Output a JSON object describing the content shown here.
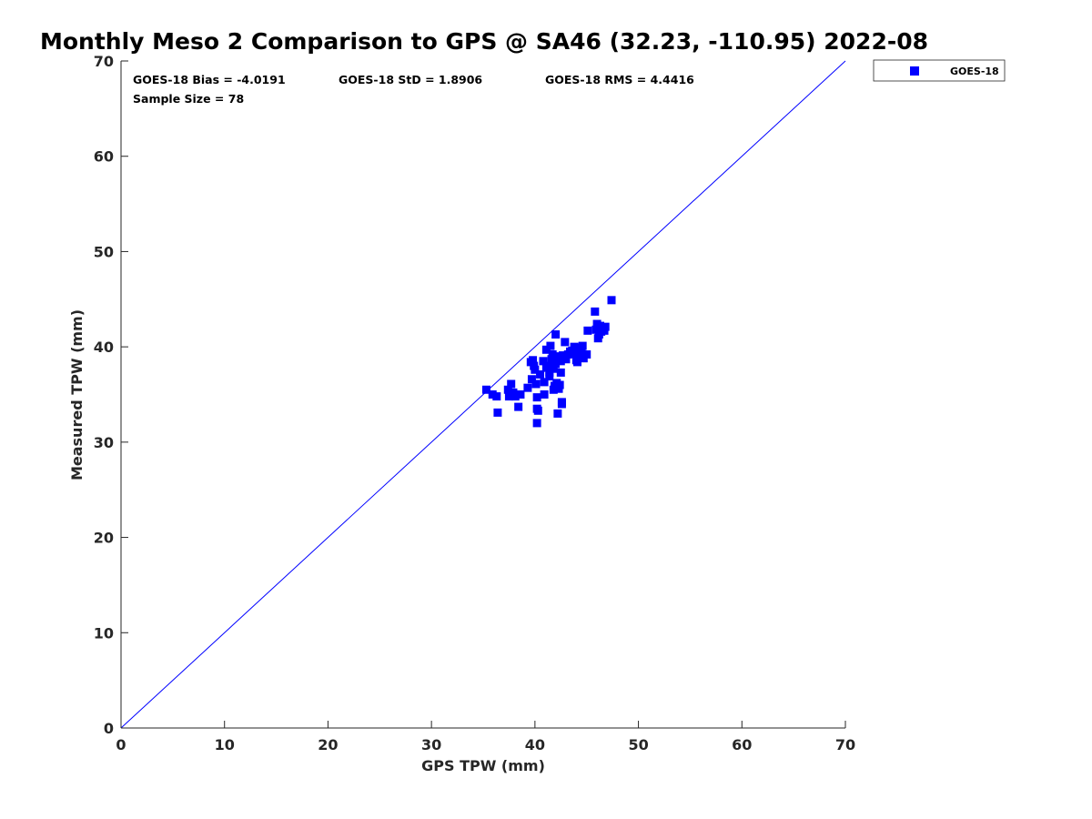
{
  "chart_data": {
    "type": "scatter",
    "title": "Monthly Meso 2 Comparison to GPS @ SA46 (32.23, -110.95) 2022-08",
    "xlabel": "GPS TPW (mm)",
    "ylabel": "Measured TPW (mm)",
    "xlim": [
      0,
      70
    ],
    "ylim": [
      0,
      70
    ],
    "xticks": [
      0,
      10,
      20,
      30,
      40,
      50,
      60,
      70
    ],
    "yticks": [
      0,
      10,
      20,
      30,
      40,
      50,
      60,
      70
    ],
    "grid": false,
    "legend_position": "outside top-right",
    "stats": {
      "bias": "GOES-18 Bias = -4.0191",
      "std": "GOES-18 StD = 1.8906",
      "rms": "GOES-18 RMS = 4.4416",
      "sample_size": "Sample Size = 78"
    },
    "reference_line": {
      "x": [
        0,
        70
      ],
      "y": [
        0,
        70
      ],
      "color": "#0000ff"
    },
    "series": [
      {
        "name": "GOES-18",
        "color": "#0000ff",
        "marker": "square",
        "points": [
          [
            35.3,
            35.5
          ],
          [
            35.9,
            35.0
          ],
          [
            36.3,
            34.8
          ],
          [
            36.4,
            33.1
          ],
          [
            37.4,
            35.5
          ],
          [
            37.5,
            34.8
          ],
          [
            37.7,
            36.1
          ],
          [
            37.9,
            35.2
          ],
          [
            38.1,
            34.8
          ],
          [
            38.4,
            33.7
          ],
          [
            38.6,
            35.0
          ],
          [
            39.3,
            35.7
          ],
          [
            39.6,
            38.4
          ],
          [
            39.7,
            36.6
          ],
          [
            39.8,
            38.6
          ],
          [
            39.9,
            38.0
          ],
          [
            40.0,
            37.6
          ],
          [
            40.1,
            36.1
          ],
          [
            40.2,
            34.7
          ],
          [
            40.2,
            33.5
          ],
          [
            40.2,
            32.0
          ],
          [
            40.3,
            33.3
          ],
          [
            40.5,
            37.1
          ],
          [
            40.8,
            38.5
          ],
          [
            40.9,
            35.0
          ],
          [
            40.9,
            36.3
          ],
          [
            41.1,
            39.7
          ],
          [
            41.1,
            37.8
          ],
          [
            41.3,
            38.0
          ],
          [
            41.4,
            36.9
          ],
          [
            41.4,
            37.3
          ],
          [
            41.5,
            40.1
          ],
          [
            41.6,
            38.7
          ],
          [
            41.7,
            39.2
          ],
          [
            41.8,
            37.7
          ],
          [
            41.8,
            35.5
          ],
          [
            41.9,
            35.9
          ],
          [
            42.0,
            41.3
          ],
          [
            42.0,
            38.2
          ],
          [
            42.1,
            36.2
          ],
          [
            42.2,
            39.0
          ],
          [
            42.2,
            33.0
          ],
          [
            42.3,
            35.6
          ],
          [
            42.4,
            36.0
          ],
          [
            42.5,
            38.5
          ],
          [
            42.5,
            37.3
          ],
          [
            42.6,
            34.0
          ],
          [
            42.6,
            34.2
          ],
          [
            42.7,
            39.1
          ],
          [
            42.9,
            40.5
          ],
          [
            43.0,
            38.7
          ],
          [
            43.2,
            39.2
          ],
          [
            43.4,
            39.5
          ],
          [
            43.6,
            39.6
          ],
          [
            43.8,
            40.0
          ],
          [
            43.9,
            39.3
          ],
          [
            44.0,
            38.6
          ],
          [
            44.1,
            38.4
          ],
          [
            44.2,
            39.8
          ],
          [
            44.3,
            39.0
          ],
          [
            44.4,
            39.5
          ],
          [
            44.5,
            39.9
          ],
          [
            44.6,
            40.1
          ],
          [
            44.7,
            38.8
          ],
          [
            45.0,
            39.2
          ],
          [
            45.1,
            41.7
          ],
          [
            45.8,
            43.7
          ],
          [
            45.9,
            41.8
          ],
          [
            46.0,
            42.4
          ],
          [
            46.1,
            40.9
          ],
          [
            46.2,
            41.3
          ],
          [
            46.3,
            42.2
          ],
          [
            46.4,
            41.6
          ],
          [
            46.5,
            41.9
          ],
          [
            46.6,
            42.0
          ],
          [
            46.7,
            41.7
          ],
          [
            46.8,
            42.1
          ],
          [
            47.4,
            44.9
          ]
        ]
      }
    ]
  }
}
